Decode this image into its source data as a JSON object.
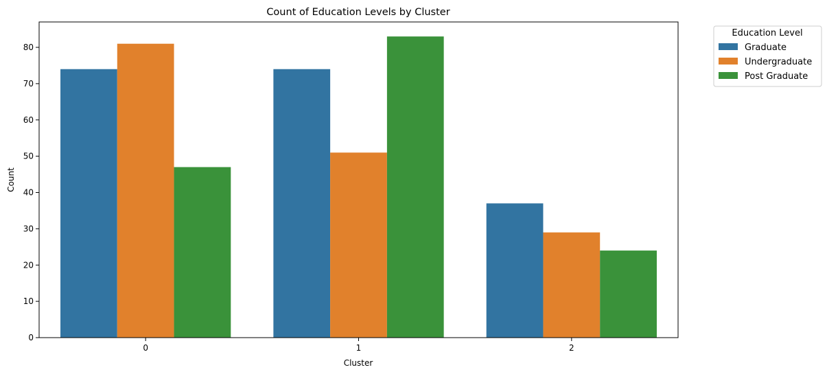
{
  "chart_data": {
    "type": "bar",
    "title": "Count of Education Levels by Cluster",
    "xlabel": "Cluster",
    "ylabel": "Count",
    "categories": [
      "0",
      "1",
      "2"
    ],
    "series": [
      {
        "name": "Graduate",
        "values": [
          74,
          74,
          37
        ],
        "color": "#3274a1"
      },
      {
        "name": "Undergraduate",
        "values": [
          81,
          51,
          29
        ],
        "color": "#e1812c"
      },
      {
        "name": "Post Graduate",
        "values": [
          47,
          83,
          24
        ],
        "color": "#3a923a"
      }
    ],
    "ylim": [
      0,
      87
    ],
    "yticks": [
      0,
      10,
      20,
      30,
      40,
      50,
      60,
      70,
      80
    ],
    "grid": false,
    "legend": {
      "title": "Education Level",
      "placement": "outside-top-right"
    }
  }
}
